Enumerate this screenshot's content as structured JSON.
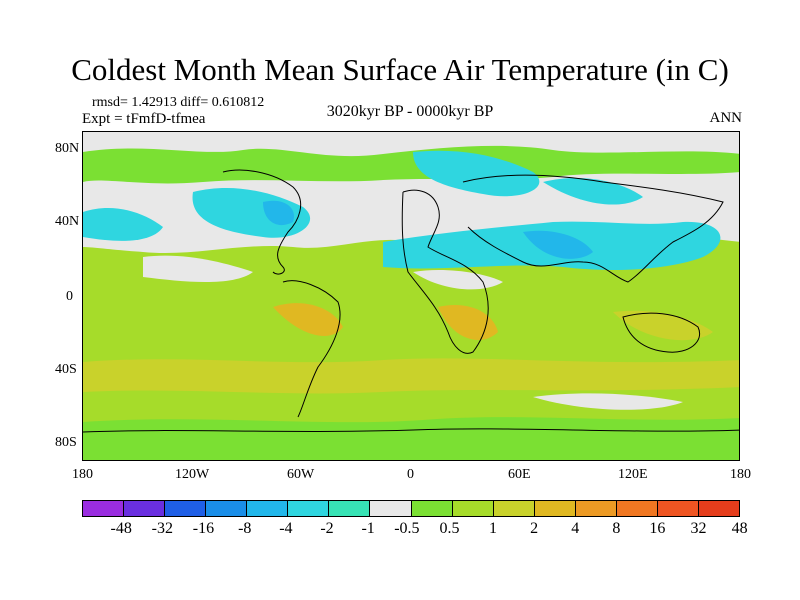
{
  "title": "Coldest Month Mean Surface Air Temperature (in C)",
  "stats": "rmsd= 1.42913 diff= 0.610812",
  "experiment": "Expt = tFmfD-tfmea",
  "period": "3020kyr BP - 0000kyr BP",
  "season": "ANN",
  "lat_labels": [
    "80N",
    "40N",
    "0",
    "40S",
    "80S"
  ],
  "lon_labels": [
    "180",
    "120W",
    "60W",
    "0",
    "60E",
    "120E",
    "180"
  ],
  "colorbar": {
    "colors": [
      "#9a2de0",
      "#6a2fe0",
      "#1f5fe6",
      "#1a8ee8",
      "#22b7ea",
      "#2fd6e0",
      "#37e3b5",
      "#e8e8e8",
      "#7be033",
      "#a6dc2a",
      "#c9d22b",
      "#e0b822",
      "#ec9a24",
      "#f07722",
      "#ef5522",
      "#e53d1c"
    ],
    "labels": [
      "-48",
      "-32",
      "-16",
      "-8",
      "-4",
      "-2",
      "-1",
      "-0.5",
      "0.5",
      "1",
      "2",
      "4",
      "8",
      "16",
      "32",
      "48"
    ]
  },
  "palette": {
    "neutral": "#e8e8e8",
    "warm1": "#7be033",
    "warm2": "#a6dc2a",
    "warm3": "#c9d22b",
    "warm4": "#e0b822",
    "cool1": "#2fd6e0",
    "cool2": "#22b7ea"
  }
}
